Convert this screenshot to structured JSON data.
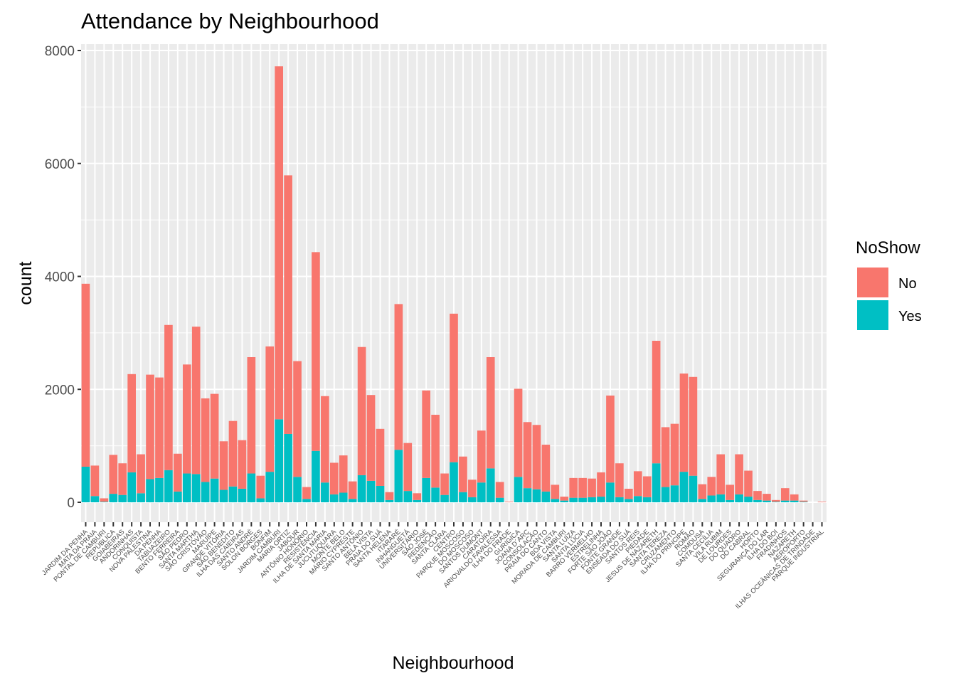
{
  "chart_data": {
    "type": "bar",
    "stacked": true,
    "title": "Attendance by Neighbourhood",
    "xlabel": "Neighbourhood",
    "ylabel": "count",
    "ylim": [
      -350,
      8300
    ],
    "yticks": [
      0,
      2000,
      4000,
      6000,
      8000
    ],
    "grid": true,
    "legend": {
      "title": "NoShow",
      "position": "right"
    },
    "colors": {
      "No": "#F8766D",
      "Yes": "#00BFC4",
      "panel": "#EBEBEB",
      "grid": "#FFFFFF"
    },
    "categories": [
      "JARDIM DA PENHA",
      "MATA DA PRAIA",
      "PONTAL DE CAMBURI",
      "REPÚBLICA",
      "GOIABEIRAS",
      "ANDORINHAS",
      "CONQUISTA",
      "NOVA PALESTINA",
      "DA PENHA",
      "TABUAZEIRO",
      "BENTO FERREIRA",
      "SÃO PEDRO",
      "SANTA MARTHA",
      "SÃO CRISTÓVÃO",
      "MARUÍPE",
      "GRANDE VITÓRIA",
      "SÃO BENEDITO",
      "ILHA DAS CAIEIRAS",
      "SANTO ANDRÉ",
      "SOLON BORGES",
      "BONFIM",
      "JARDIM CAMBURI",
      "MARIA ORTIZ",
      "JABOUR",
      "ANTÔNIO HONÓRIO",
      "RESISTÊNCIA",
      "ILHA DE SANTA MARIA",
      "JUCUTUQUARA",
      "MONTE BELO",
      "MÁRIO CYPRESTE",
      "SANTO ANTÔNIO",
      "BELA VISTA",
      "PRAIA DO SUÁ",
      "SANTA HELENA",
      "ITARARÉ",
      "INHANGUETÁ",
      "UNIVERSITÁRIO",
      "SÃO JOSÉ",
      "REDENÇÃO",
      "SANTA CLARA",
      "CENTRO",
      "PARQUE MOSCOSO",
      "DO MOSCOSO",
      "SANTOS DUMONT",
      "CARATOÍRA",
      "ARIOVALDO FAVALESSA",
      "ILHA DO FRADE",
      "GURIGICA",
      "JOANA D´ARC",
      "CONSOLAÇÃO",
      "PRAIA DO CANTO",
      "BOA VISTA",
      "MORADA DE CAMBURI",
      "SANTA LUÍZA",
      "SANTA LÚCIA",
      "BARRO VERMELHO",
      "ESTRELINHA",
      "FORTE SÃO JOÃO",
      "FONTE GRANDE",
      "ENSEADA DO SUÁ",
      "SANTOS REIS",
      "PIEDADE",
      "JESUS DE NAZARETH",
      "SANTA TEREZA",
      "CRUZAMENTO",
      "ILHA DO PRÍNCIPE",
      "ROMÃO",
      "COMDUSA",
      "SANTA CECÍLIA",
      "VILA RUBIM",
      "DE LOURDES",
      "DO QUADRO",
      "DO CABRAL",
      "HORTO",
      "SEGURANÇA DO LAR",
      "ILHA DO BOI",
      "FRADINHOS",
      "NAZARETH",
      "AEROPORTO",
      "ILHAS OCEÂNICAS DE TRINDADE",
      "PARQUE INDUSTRIAL"
    ],
    "series": [
      {
        "name": "No",
        "values": [
          3240,
          540,
          60,
          690,
          560,
          1740,
          690,
          1850,
          1780,
          2570,
          670,
          1930,
          2610,
          1480,
          1500,
          860,
          1160,
          860,
          2060,
          400,
          2220,
          6250,
          4580,
          2050,
          210,
          3520,
          1530,
          560,
          660,
          310,
          2270,
          1520,
          1010,
          140,
          2580,
          850,
          120,
          1550,
          1290,
          380,
          2630,
          630,
          310,
          920,
          1970,
          280,
          10,
          1560,
          1170,
          1140,
          830,
          250,
          70,
          350,
          350,
          330,
          430,
          1540,
          600,
          180,
          440,
          370,
          2170,
          1060,
          1090,
          1740,
          1750,
          260,
          330,
          710,
          270,
          710,
          460,
          160,
          120,
          30,
          220,
          110,
          20,
          0,
          10
        ]
      },
      {
        "name": "Yes",
        "values": [
          630,
          110,
          10,
          150,
          130,
          530,
          160,
          410,
          430,
          570,
          190,
          510,
          500,
          360,
          420,
          220,
          280,
          240,
          510,
          70,
          540,
          1470,
          1210,
          450,
          60,
          910,
          350,
          140,
          170,
          60,
          480,
          380,
          290,
          40,
          930,
          200,
          40,
          430,
          260,
          130,
          710,
          180,
          90,
          350,
          600,
          80,
          0,
          450,
          250,
          230,
          190,
          60,
          30,
          80,
          80,
          90,
          100,
          350,
          90,
          60,
          110,
          90,
          690,
          270,
          300,
          540,
          470,
          60,
          120,
          140,
          40,
          140,
          100,
          40,
          30,
          10,
          30,
          30,
          10,
          0,
          0
        ]
      }
    ]
  }
}
